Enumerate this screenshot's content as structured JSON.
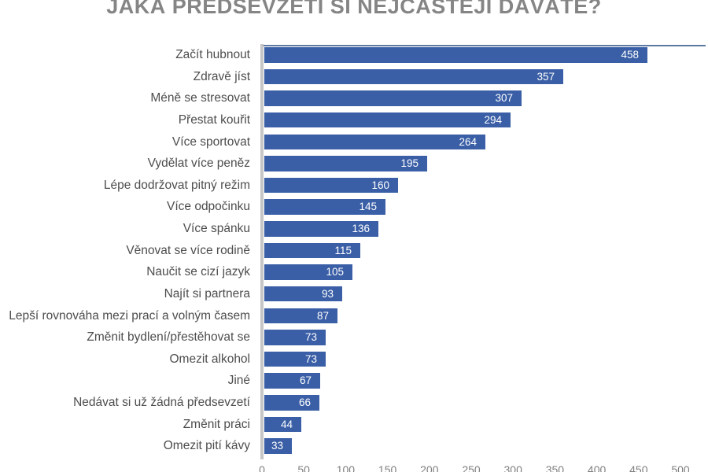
{
  "page": {
    "background": "#ffffff"
  },
  "chart_data": {
    "type": "bar",
    "orientation": "horizontal",
    "title": "JAKÁ PŘEDSEVZETÍ SI NEJČASTĚJI DÁVÁTE?",
    "categories": [
      "Začít hubnout",
      "Zdravě jíst",
      "Méně se stresovat",
      "Přestat kouřit",
      "Více sportovat",
      "Vydělat více peněz",
      "Lépe dodržovat pitný režim",
      "Více odpočinku",
      "Více spánku",
      "Věnovat se více rodině",
      "Naučit se cizí jazyk",
      "Najít si partnera",
      "Lepší rovnováha mezi prací a volným časem",
      "Změnit bydlení/přestěhovat se",
      "Omezit alkohol",
      "Jiné",
      "Nedávat si už žádná předsevzetí",
      "Změnit práci",
      "Omezit pití kávy"
    ],
    "values": [
      458,
      357,
      307,
      294,
      264,
      195,
      160,
      145,
      136,
      115,
      105,
      93,
      87,
      73,
      73,
      67,
      66,
      44,
      33
    ],
    "data_label_position": "inside-end",
    "xlabel": "",
    "ylabel": "",
    "xlim": [
      0,
      500
    ],
    "x_ticks": [
      0,
      50,
      100,
      150,
      200,
      250,
      300,
      350,
      400,
      450,
      500
    ],
    "grid": false,
    "legend": false,
    "colors": {
      "bar": "#3A5FA6",
      "value_label": "#FFFFFF",
      "category_label": "#4D4D4D",
      "title": "#858585",
      "tick_label": "#7F7F7F",
      "axis_line": "#C6C6C6",
      "plot_top_border": "#4A6A96"
    }
  }
}
